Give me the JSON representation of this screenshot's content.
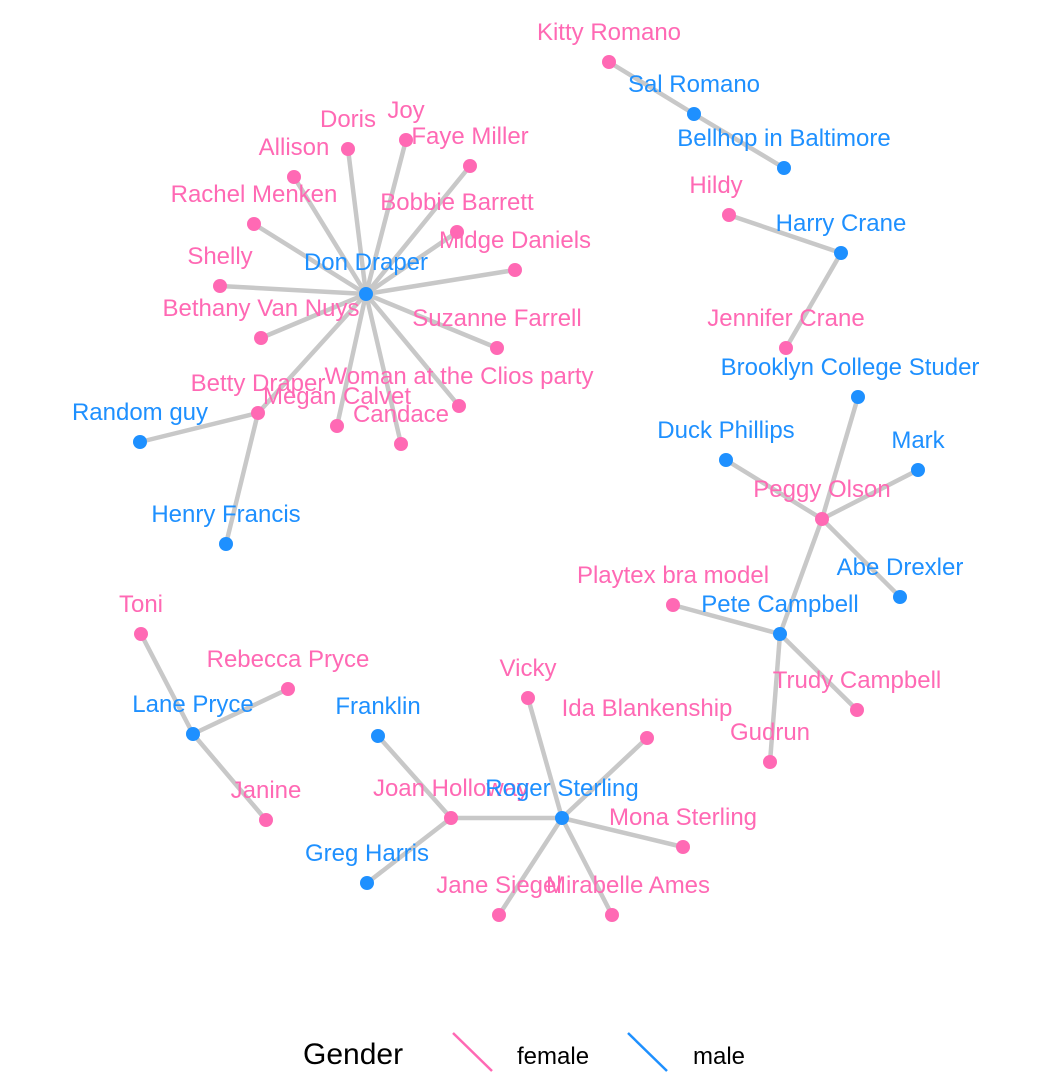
{
  "colors": {
    "female": "#FF69B4",
    "male": "#1E90FF",
    "edge": "#c8c8c8"
  },
  "nodes": [
    {
      "id": "don",
      "name": "Don Draper",
      "gender": "male"
    },
    {
      "id": "doris",
      "name": "Doris",
      "gender": "female"
    },
    {
      "id": "joy",
      "name": "Joy",
      "gender": "female"
    },
    {
      "id": "faye",
      "name": "Faye Miller",
      "gender": "female"
    },
    {
      "id": "allison",
      "name": "Allison",
      "gender": "female"
    },
    {
      "id": "rachel",
      "name": "Rachel Menken",
      "gender": "female"
    },
    {
      "id": "bobbie",
      "name": "Bobbie Barrett",
      "gender": "female"
    },
    {
      "id": "midge",
      "name": "Midge Daniels",
      "gender": "female"
    },
    {
      "id": "shelly",
      "name": "Shelly",
      "gender": "female"
    },
    {
      "id": "bethany",
      "name": "Bethany Van Nuys",
      "gender": "female"
    },
    {
      "id": "suzanne",
      "name": "Suzanne Farrell",
      "gender": "female"
    },
    {
      "id": "betty",
      "name": "Betty Draper",
      "gender": "female"
    },
    {
      "id": "megan",
      "name": "Megan Calvet",
      "gender": "female"
    },
    {
      "id": "woman",
      "name": "Woman at the Clios party",
      "gender": "female"
    },
    {
      "id": "candace",
      "name": "Candace",
      "gender": "female"
    },
    {
      "id": "random",
      "name": "Random guy",
      "gender": "male"
    },
    {
      "id": "henry",
      "name": "Henry Francis",
      "gender": "male"
    },
    {
      "id": "kitty",
      "name": "Kitty Romano",
      "gender": "female"
    },
    {
      "id": "sal",
      "name": "Sal Romano",
      "gender": "male"
    },
    {
      "id": "bellhop",
      "name": "Bellhop in Baltimore",
      "gender": "male"
    },
    {
      "id": "hildy",
      "name": "Hildy",
      "gender": "female"
    },
    {
      "id": "harry",
      "name": "Harry Crane",
      "gender": "male"
    },
    {
      "id": "jennifer",
      "name": "Jennifer Crane",
      "gender": "female"
    },
    {
      "id": "brooklyn",
      "name": "Brooklyn College Studer",
      "gender": "male"
    },
    {
      "id": "duck",
      "name": "Duck Phillips",
      "gender": "male"
    },
    {
      "id": "mark",
      "name": "Mark",
      "gender": "male"
    },
    {
      "id": "peggy",
      "name": "Peggy Olson",
      "gender": "female"
    },
    {
      "id": "abe",
      "name": "Abe Drexler",
      "gender": "male"
    },
    {
      "id": "playtex",
      "name": "Playtex bra model",
      "gender": "female"
    },
    {
      "id": "pete",
      "name": "Pete Campbell",
      "gender": "male"
    },
    {
      "id": "trudy",
      "name": "Trudy Campbell",
      "gender": "female"
    },
    {
      "id": "gudrun",
      "name": "Gudrun",
      "gender": "female"
    },
    {
      "id": "toni",
      "name": "Toni",
      "gender": "female"
    },
    {
      "id": "rebecca",
      "name": "Rebecca Pryce",
      "gender": "female"
    },
    {
      "id": "lane",
      "name": "Lane Pryce",
      "gender": "male"
    },
    {
      "id": "janine",
      "name": "Janine",
      "gender": "female"
    },
    {
      "id": "vicky",
      "name": "Vicky",
      "gender": "female"
    },
    {
      "id": "franklin",
      "name": "Franklin",
      "gender": "male"
    },
    {
      "id": "ida",
      "name": "Ida Blankenship",
      "gender": "female"
    },
    {
      "id": "joan",
      "name": "Joan Holloway",
      "gender": "female"
    },
    {
      "id": "roger",
      "name": "Roger Sterling",
      "gender": "male"
    },
    {
      "id": "mona",
      "name": "Mona Sterling",
      "gender": "female"
    },
    {
      "id": "greg",
      "name": "Greg Harris",
      "gender": "male"
    },
    {
      "id": "jane",
      "name": "Jane Siegel",
      "gender": "female"
    },
    {
      "id": "mirabelle",
      "name": "Mirabelle Ames",
      "gender": "female"
    }
  ],
  "edges": [
    [
      "don",
      "doris"
    ],
    [
      "don",
      "joy"
    ],
    [
      "don",
      "faye"
    ],
    [
      "don",
      "allison"
    ],
    [
      "don",
      "rachel"
    ],
    [
      "don",
      "bobbie"
    ],
    [
      "don",
      "midge"
    ],
    [
      "don",
      "shelly"
    ],
    [
      "don",
      "bethany"
    ],
    [
      "don",
      "suzanne"
    ],
    [
      "don",
      "betty"
    ],
    [
      "don",
      "megan"
    ],
    [
      "don",
      "woman"
    ],
    [
      "don",
      "candace"
    ],
    [
      "betty",
      "random"
    ],
    [
      "betty",
      "henry"
    ],
    [
      "kitty",
      "sal"
    ],
    [
      "sal",
      "bellhop"
    ],
    [
      "hildy",
      "harry"
    ],
    [
      "harry",
      "jennifer"
    ],
    [
      "peggy",
      "brooklyn"
    ],
    [
      "peggy",
      "duck"
    ],
    [
      "peggy",
      "mark"
    ],
    [
      "peggy",
      "abe"
    ],
    [
      "peggy",
      "pete"
    ],
    [
      "pete",
      "playtex"
    ],
    [
      "pete",
      "trudy"
    ],
    [
      "pete",
      "gudrun"
    ],
    [
      "lane",
      "toni"
    ],
    [
      "lane",
      "rebecca"
    ],
    [
      "lane",
      "janine"
    ],
    [
      "joan",
      "franklin"
    ],
    [
      "joan",
      "greg"
    ],
    [
      "joan",
      "roger"
    ],
    [
      "roger",
      "vicky"
    ],
    [
      "roger",
      "ida"
    ],
    [
      "roger",
      "mona"
    ],
    [
      "roger",
      "jane"
    ],
    [
      "roger",
      "mirabelle"
    ]
  ],
  "legend": {
    "title": "Gender",
    "items": [
      {
        "label": "female",
        "gender": "female"
      },
      {
        "label": "male",
        "gender": "male"
      }
    ]
  }
}
